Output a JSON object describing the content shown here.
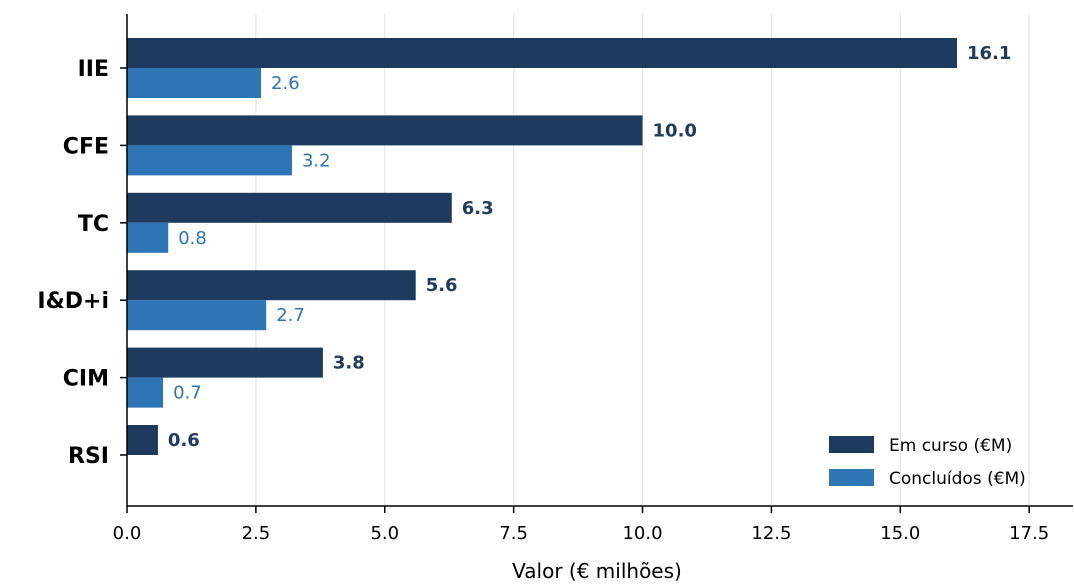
{
  "chart_data": {
    "type": "bar",
    "orientation": "horizontal",
    "categories": [
      "IIE",
      "CFE",
      "TC",
      "I&D+i",
      "CIM",
      "RSI"
    ],
    "series": [
      {
        "name": "Em curso (€M)",
        "values": [
          16.1,
          10.0,
          6.3,
          5.6,
          3.8,
          0.6
        ],
        "labels": [
          "16.1",
          "10.0",
          "6.3",
          "5.6",
          "3.8",
          "0.6"
        ],
        "color": "#1f3a5f"
      },
      {
        "name": "Concluídos (€M)",
        "values": [
          2.6,
          3.2,
          0.8,
          2.7,
          0.7,
          null
        ],
        "labels": [
          "2.6",
          "3.2",
          "0.8",
          "2.7",
          "0.7",
          ""
        ],
        "color": "#2e75b6"
      }
    ],
    "xlabel": "Valor (€ milhões)",
    "ylabel": "",
    "xlim": [
      0,
      18.35
    ],
    "xticks": [
      0.0,
      2.5,
      5.0,
      7.5,
      10.0,
      12.5,
      15.0,
      17.5
    ],
    "xtick_labels": [
      "0.0",
      "2.5",
      "5.0",
      "7.5",
      "10.0",
      "12.5",
      "15.0",
      "17.5"
    ],
    "grid": "vertical",
    "legend_position": "bottom-right",
    "colors": {
      "axis": "#000000",
      "grid": "#e6e6e6"
    }
  }
}
